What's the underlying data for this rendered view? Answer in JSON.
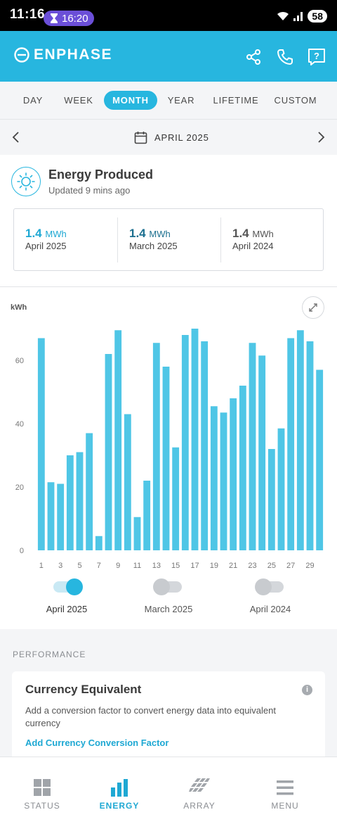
{
  "status_bar": {
    "time": "11:16",
    "timer": "16:20",
    "battery": "58"
  },
  "header": {
    "brand": "ENPHASE"
  },
  "tabs": [
    {
      "label": "DAY",
      "active": false
    },
    {
      "label": "WEEK",
      "active": false
    },
    {
      "label": "MONTH",
      "active": true
    },
    {
      "label": "YEAR",
      "active": false
    },
    {
      "label": "LIFETIME",
      "active": false
    },
    {
      "label": "CUSTOM",
      "active": false
    }
  ],
  "date_nav": {
    "label": "APRIL 2025"
  },
  "energy": {
    "title": "Energy Produced",
    "updated": "Updated 9 mins ago",
    "totals": [
      {
        "value": "1.4",
        "unit": "MWh",
        "label": "April 2025",
        "color": "#1ea8d3"
      },
      {
        "value": "1.4",
        "unit": "MWh",
        "label": "March 2025",
        "color": "#1b6f8f"
      },
      {
        "value": "1.4",
        "unit": "MWh",
        "label": "April 2024",
        "color": "#555555"
      }
    ]
  },
  "chart_data": {
    "type": "bar",
    "ylabel": "kWh",
    "ylim": [
      0,
      70
    ],
    "yticks": [
      0,
      20,
      40,
      60
    ],
    "xticks": [
      "1",
      "3",
      "5",
      "7",
      "9",
      "11",
      "13",
      "15",
      "17",
      "19",
      "21",
      "23",
      "25",
      "27",
      "29"
    ],
    "categories": [
      "1",
      "2",
      "3",
      "4",
      "5",
      "6",
      "7",
      "8",
      "9",
      "10",
      "11",
      "12",
      "13",
      "14",
      "15",
      "16",
      "17",
      "18",
      "19",
      "20",
      "21",
      "22",
      "23",
      "24",
      "25",
      "26",
      "27",
      "28",
      "29",
      "30"
    ],
    "series": [
      {
        "name": "April 2025",
        "color": "#4fc6e6",
        "values": [
          67,
          21.5,
          21,
          30,
          31,
          37,
          4.5,
          62,
          69.5,
          43,
          10.5,
          22,
          65.5,
          58,
          32.5,
          68,
          70,
          66,
          45.5,
          43.5,
          48,
          52,
          65.5,
          61.5,
          32,
          38.5,
          67,
          69.5,
          66,
          57
        ]
      }
    ],
    "grid": false
  },
  "legend": [
    {
      "label": "April 2025",
      "on": true
    },
    {
      "label": "March 2025",
      "on": false
    },
    {
      "label": "April 2024",
      "on": false
    }
  ],
  "performance": {
    "heading": "PERFORMANCE",
    "title": "Currency Equivalent",
    "info": "i",
    "description": "Add a conversion factor to convert energy data into equivalent currency",
    "link": "Add Currency Conversion Factor"
  },
  "bottom_nav": [
    {
      "label": "STATUS",
      "icon": "grid-icon",
      "active": false
    },
    {
      "label": "ENERGY",
      "icon": "bar-chart-icon",
      "active": true
    },
    {
      "label": "ARRAY",
      "icon": "solar-array-icon",
      "active": false
    },
    {
      "label": "MENU",
      "icon": "hamburger-icon",
      "active": false
    }
  ]
}
